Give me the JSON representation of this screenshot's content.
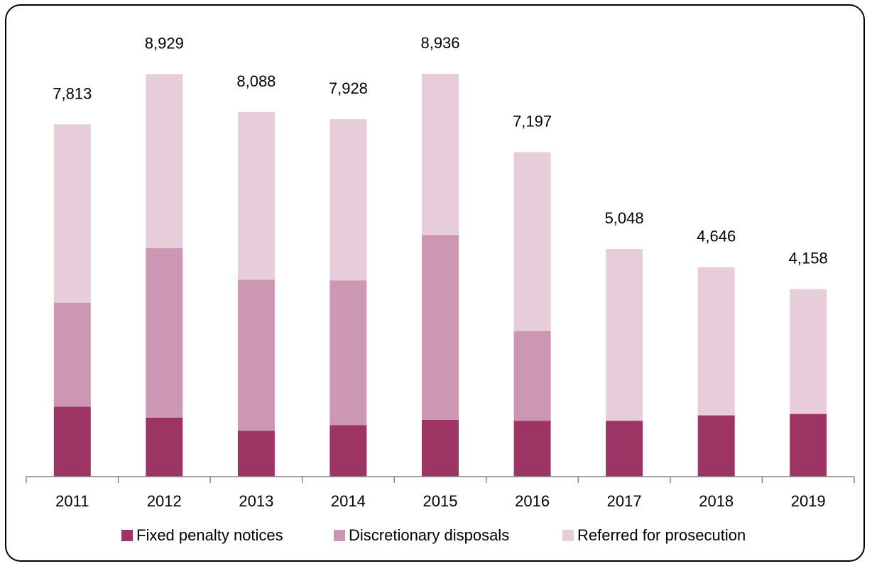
{
  "colors": {
    "fixed_penalty": "#9c3464",
    "discretionary": "#cc97b3",
    "referred": "#e7cdd9",
    "axis": "#868686",
    "text": "#000000"
  },
  "chart_data": {
    "type": "bar",
    "stacked": true,
    "title": "",
    "xlabel": "",
    "ylabel": "",
    "categories": [
      "2011",
      "2012",
      "2013",
      "2014",
      "2015",
      "2016",
      "2017",
      "2018",
      "2019"
    ],
    "series": [
      {
        "name": "Fixed penalty notices",
        "color_key": "fixed_penalty",
        "values": [
          1550,
          1310,
          1020,
          1140,
          1260,
          1240,
          1240,
          1360,
          1390
        ]
      },
      {
        "name": "Discretionary disposals",
        "color_key": "discretionary",
        "values": [
          2310,
          3760,
          3350,
          3210,
          4100,
          1990,
          0,
          0,
          0
        ]
      },
      {
        "name": "Referred for prosecution",
        "color_key": "referred",
        "values": [
          3953,
          3859,
          3718,
          3578,
          3576,
          3967,
          3808,
          3286,
          2768
        ]
      }
    ],
    "totals": [
      7813,
      8929,
      8088,
      7928,
      8936,
      7197,
      5048,
      4646,
      4158
    ],
    "total_labels": [
      "7,813",
      "8,929",
      "8,088",
      "7,928",
      "8,936",
      "7,197",
      "5,048",
      "4,646",
      "4,158"
    ],
    "ylim": [
      0,
      9500
    ],
    "grid": false,
    "y_axis_visible": false,
    "legend_position": "bottom"
  }
}
